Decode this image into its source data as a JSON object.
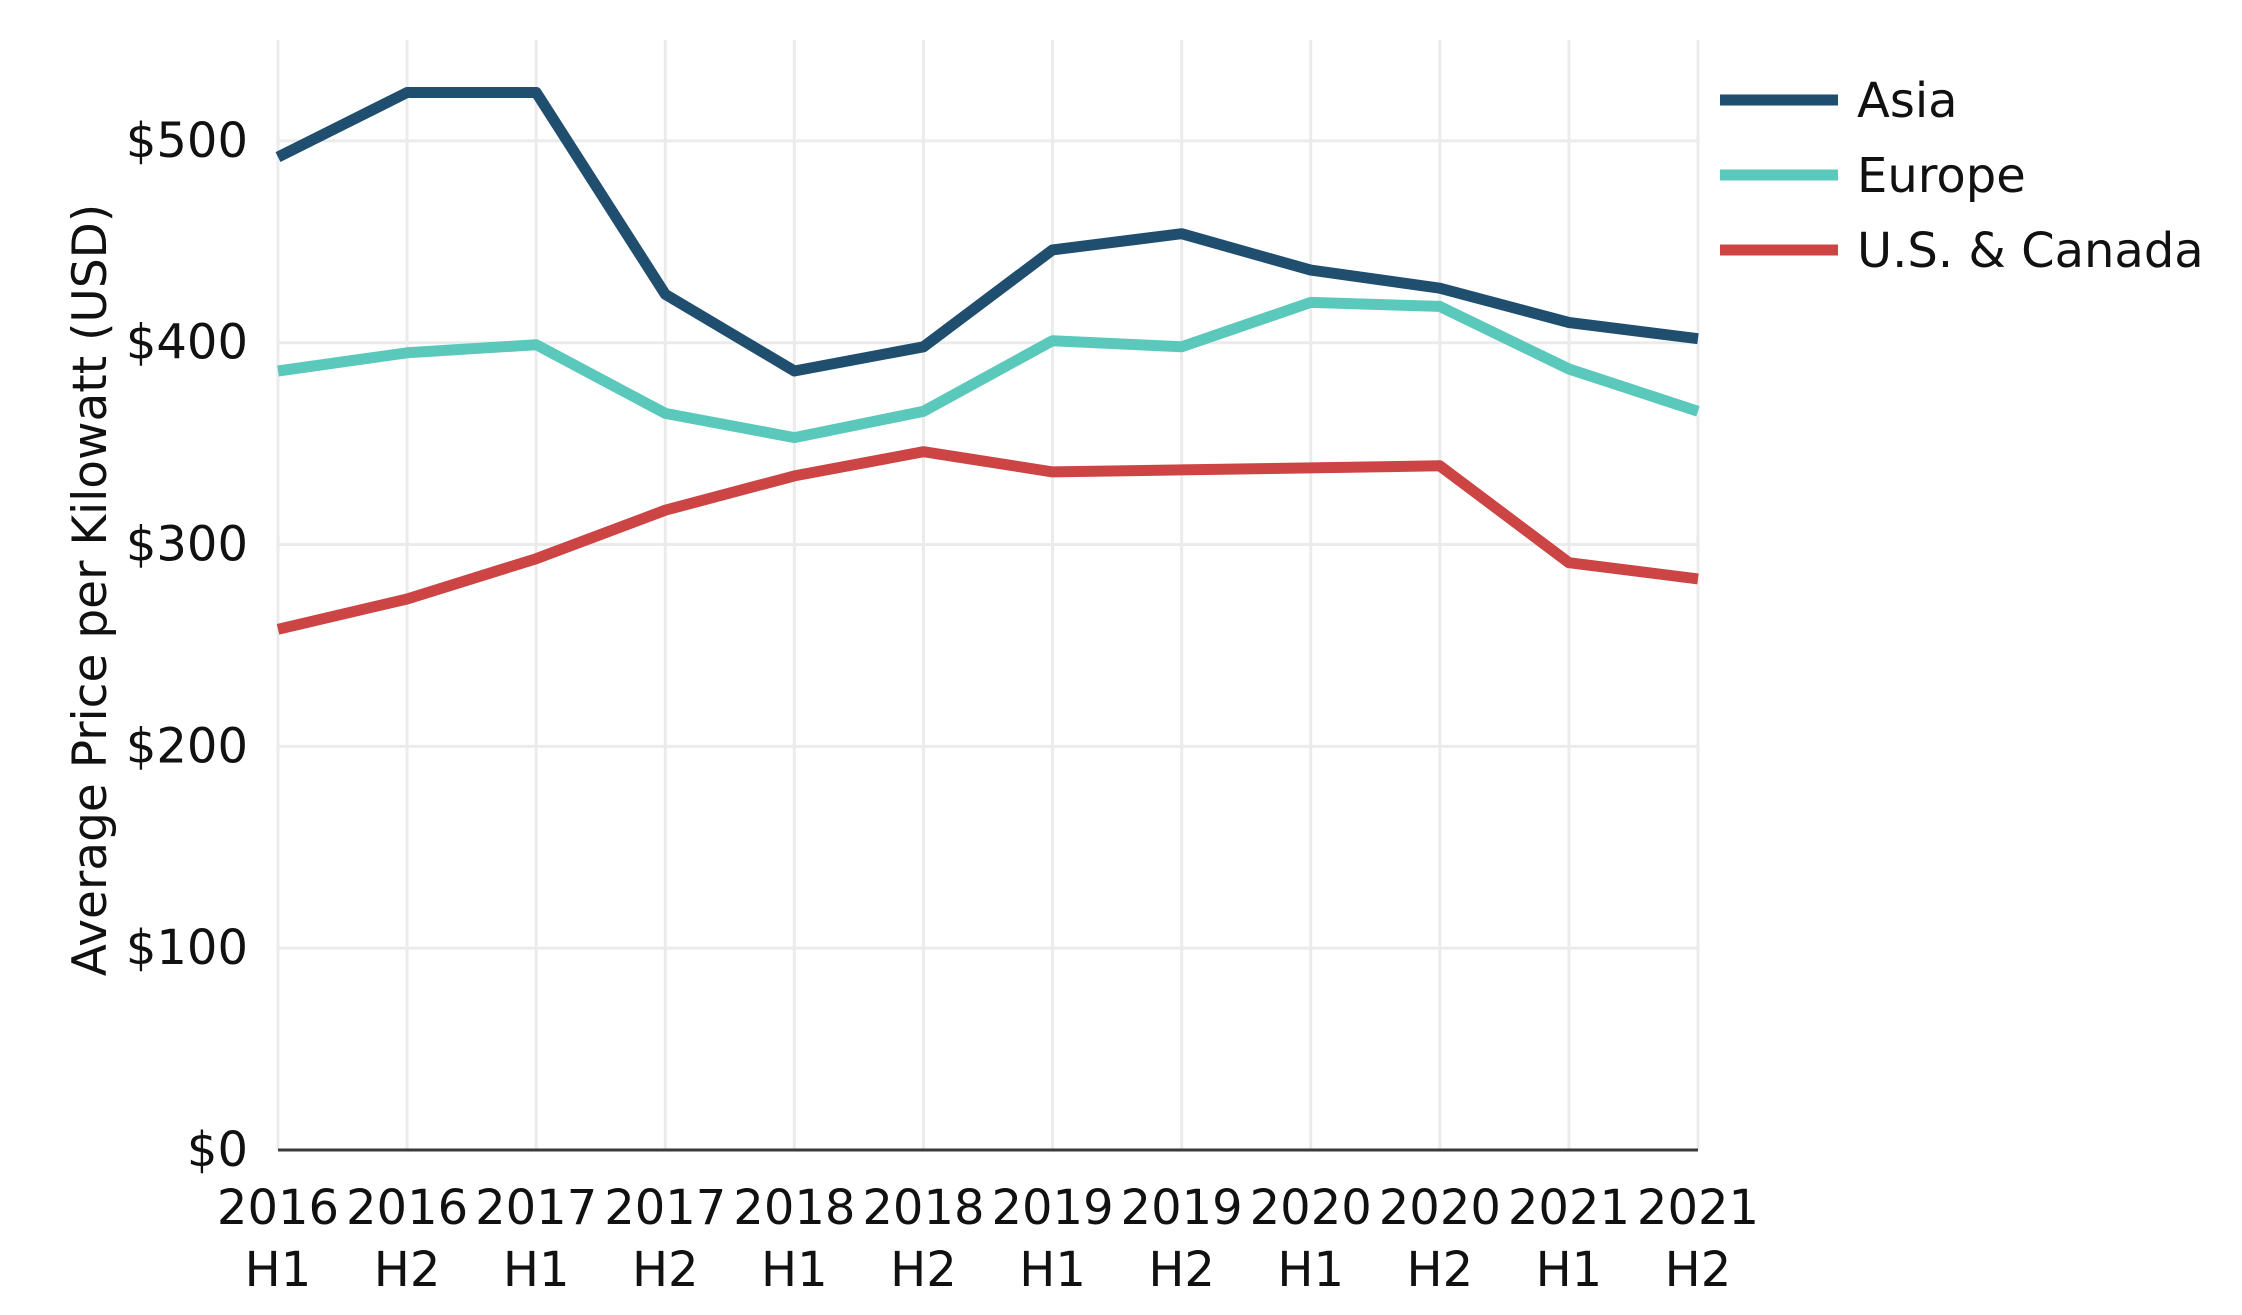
{
  "chart_data": {
    "type": "line",
    "title": "",
    "ylabel": "Average Price per Kilowatt (USD)",
    "xlabel": "",
    "categories": [
      [
        "2016",
        "H1"
      ],
      [
        "2016",
        "H2"
      ],
      [
        "2017",
        "H1"
      ],
      [
        "2017",
        "H2"
      ],
      [
        "2018",
        "H1"
      ],
      [
        "2018",
        "H2"
      ],
      [
        "2019",
        "H1"
      ],
      [
        "2019",
        "H2"
      ],
      [
        "2020",
        "H1"
      ],
      [
        "2020",
        "H2"
      ],
      [
        "2021",
        "H1"
      ],
      [
        "2021",
        "H2"
      ]
    ],
    "ylim": [
      0,
      550
    ],
    "yticks": [
      0,
      100,
      200,
      300,
      400,
      500
    ],
    "ytick_labels": [
      "$0",
      "$100",
      "$200",
      "$300",
      "$400",
      "$500"
    ],
    "grid": true,
    "legend_position": "top-right, outside plot",
    "series": [
      {
        "name": "Asia",
        "color": "#1f4e6e",
        "values": [
          492,
          524,
          524,
          424,
          386,
          398,
          446,
          454,
          436,
          427,
          410,
          402
        ]
      },
      {
        "name": "Europe",
        "color": "#5bc8bc",
        "values": [
          386,
          395,
          399,
          365,
          353,
          366,
          401,
          398,
          420,
          418,
          387,
          366
        ]
      },
      {
        "name": "U.S. & Canada",
        "color": "#cc4444",
        "values": [
          258,
          273,
          293,
          317,
          334,
          346,
          336,
          337,
          338,
          339,
          291,
          283
        ]
      }
    ]
  }
}
